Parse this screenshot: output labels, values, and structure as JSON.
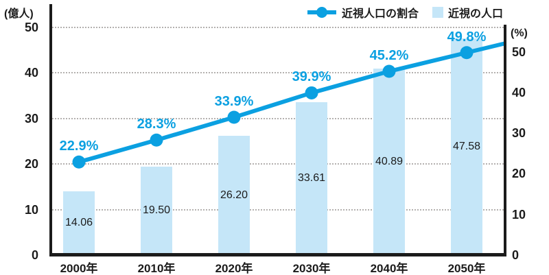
{
  "chart_data": {
    "type": "combo",
    "categories": [
      "2000年",
      "2010年",
      "2020年",
      "2030年",
      "2040年",
      "2050年"
    ],
    "series": [
      {
        "name": "近視人口の割合",
        "type": "line",
        "axis": "right",
        "unit": "%",
        "values": [
          22.9,
          28.3,
          33.9,
          39.9,
          45.2,
          49.8
        ],
        "labels": [
          "22.9%",
          "28.3%",
          "33.9%",
          "39.9%",
          "45.2%",
          "49.8%"
        ]
      },
      {
        "name": "近視の人口",
        "type": "bar",
        "axis": "left",
        "unit": "億人",
        "values": [
          14.06,
          19.5,
          26.2,
          33.61,
          40.89,
          47.58
        ],
        "labels": [
          "14.06",
          "19.50",
          "26.20",
          "33.61",
          "40.89",
          "47.58"
        ]
      }
    ],
    "left_axis": {
      "title": "(億人)",
      "ticks": [
        0,
        10,
        20,
        30,
        40,
        50
      ],
      "range": [
        0,
        50
      ]
    },
    "right_axis": {
      "title": "(%)",
      "ticks": [
        0,
        10,
        20,
        30,
        40,
        50
      ],
      "range": [
        0,
        56
      ]
    },
    "grid": "horizontal-dotted",
    "legend_position": "top-right"
  },
  "legend": {
    "items": [
      {
        "label": "近視人口の割合",
        "marker": "line-dot"
      },
      {
        "label": "近視の人口",
        "marker": "square"
      }
    ]
  },
  "colors": {
    "line": "#0ba0e1",
    "bar_fill": "#c5e6f8",
    "axis": "#1b1b1b",
    "grid": "#b3b0ae",
    "text": "#1b1b1b",
    "pct_label": "#0ba0e1"
  }
}
